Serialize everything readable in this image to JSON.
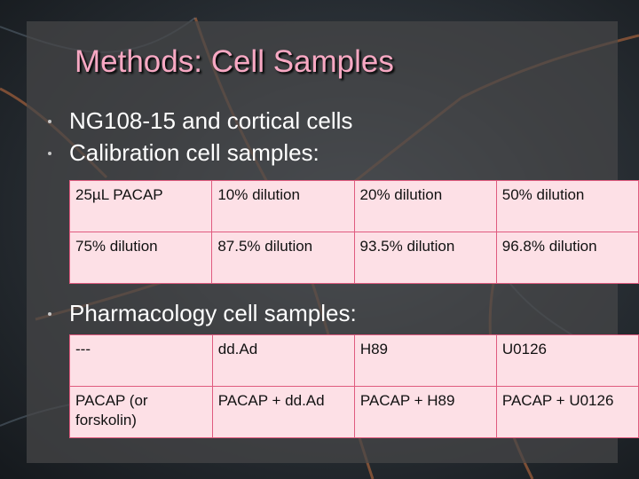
{
  "slide": {
    "title": "Methods: Cell Samples",
    "bullets_top": [
      "NG108-15 and cortical cells",
      "Calibration cell samples:"
    ],
    "calibration_table": [
      [
        "25µL PACAP",
        "10% dilution",
        "20% dilution",
        "50% dilution"
      ],
      [
        "75% dilution",
        "87.5% dilution",
        "93.5% dilution",
        "96.8% dilution"
      ]
    ],
    "bullet_pharmacology": "Pharmacology cell samples:",
    "pharmacology_table": [
      [
        "---",
        "dd.Ad",
        "H89",
        "U0126"
      ],
      [
        "PACAP (or forskolin)",
        "PACAP + dd.Ad",
        "PACAP + H89",
        "PACAP + U0126"
      ]
    ]
  },
  "colors": {
    "title": "#f7a8c3",
    "table_fill": "#fde0e6",
    "table_border": "#e05b7f"
  }
}
